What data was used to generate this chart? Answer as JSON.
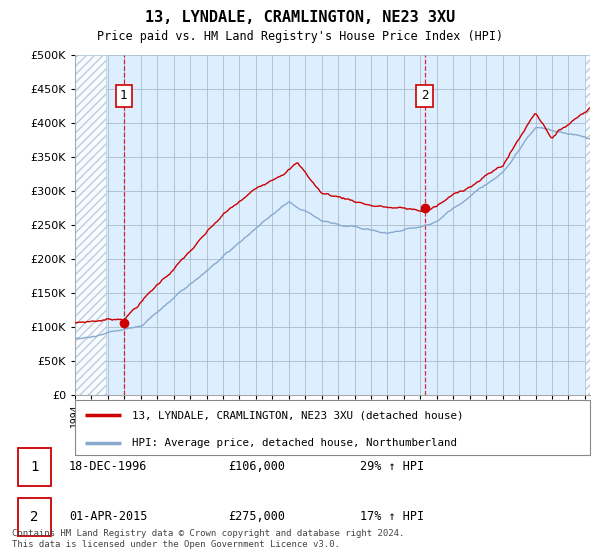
{
  "title": "13, LYNDALE, CRAMLINGTON, NE23 3XU",
  "subtitle": "Price paid vs. HM Land Registry's House Price Index (HPI)",
  "ylim": [
    0,
    500000
  ],
  "yticks": [
    0,
    50000,
    100000,
    150000,
    200000,
    250000,
    300000,
    350000,
    400000,
    450000,
    500000
  ],
  "xlim_start": 1994.0,
  "xlim_end": 2025.3,
  "sale1_date": 1996.96,
  "sale1_price": 106000,
  "sale2_date": 2015.25,
  "sale2_price": 275000,
  "line_color_property": "#cc0000",
  "line_color_hpi": "#88aacc",
  "chart_bg": "#ddeeff",
  "legend_property": "13, LYNDALE, CRAMLINGTON, NE23 3XU (detached house)",
  "legend_hpi": "HPI: Average price, detached house, Northumberland",
  "annotation1_date": "18-DEC-1996",
  "annotation1_price": "£106,000",
  "annotation1_hpi": "29% ↑ HPI",
  "annotation2_date": "01-APR-2015",
  "annotation2_price": "£275,000",
  "annotation2_hpi": "17% ↑ HPI",
  "footer": "Contains HM Land Registry data © Crown copyright and database right 2024.\nThis data is licensed under the Open Government Licence v3.0.",
  "hatch_color": "#b0c4d8",
  "grid_color": "#aabbcc",
  "dashed_line1_x": 1996.96,
  "dashed_line2_x": 2015.25,
  "hatch_left_end": 1995.9,
  "hatch_right_start": 2025.0
}
